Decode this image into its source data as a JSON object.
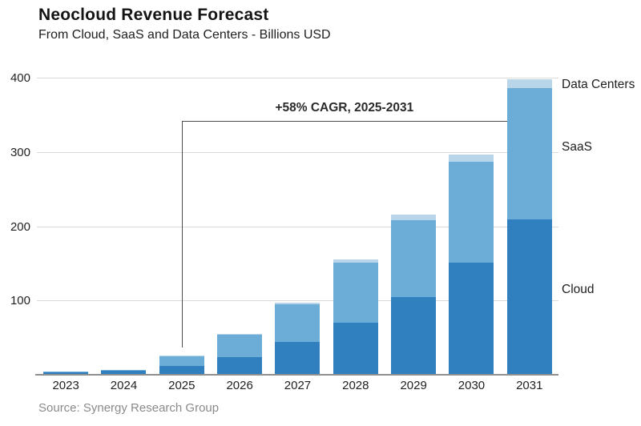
{
  "header": {
    "title": "Neocloud Revenue Forecast",
    "subtitle": "From Cloud, SaaS and Data Centers - Billions USD"
  },
  "annotation": {
    "label": "+58% CAGR, 2025-2031"
  },
  "source": "Source: Synergy Research Group",
  "chart_data": {
    "type": "bar",
    "stacked": true,
    "title": "Neocloud Revenue Forecast",
    "subtitle": "From Cloud, SaaS and Data Centers - Billions USD",
    "categories": [
      "2023",
      "2024",
      "2025",
      "2026",
      "2027",
      "2028",
      "2029",
      "2030",
      "2031"
    ],
    "series": [
      {
        "name": "Cloud",
        "color": "#3080c0",
        "values": [
          3,
          5,
          12,
          24,
          44,
          70,
          105,
          151,
          209
        ]
      },
      {
        "name": "SaaS",
        "color": "#6cadd8",
        "values": [
          1,
          2,
          13,
          30,
          51,
          81,
          103,
          136,
          177
        ]
      },
      {
        "name": "Data Centers",
        "color": "#b9d5ea",
        "values": [
          0,
          0,
          1,
          1,
          2,
          4,
          8,
          10,
          12
        ]
      }
    ],
    "totals": [
      4,
      7,
      26,
      55,
      97,
      155,
      216,
      297,
      398
    ],
    "ylabel": "Billions USD",
    "ylim": [
      0,
      400
    ],
    "yticks": [
      100,
      200,
      300,
      400
    ],
    "grid": "horizontal",
    "legend_position": "right-of-last-bar",
    "legend_labels": [
      "Data Centers",
      "SaaS",
      "Cloud"
    ],
    "annotation": "+58% CAGR, 2025-2031",
    "source": "Source: Synergy Research Group"
  }
}
